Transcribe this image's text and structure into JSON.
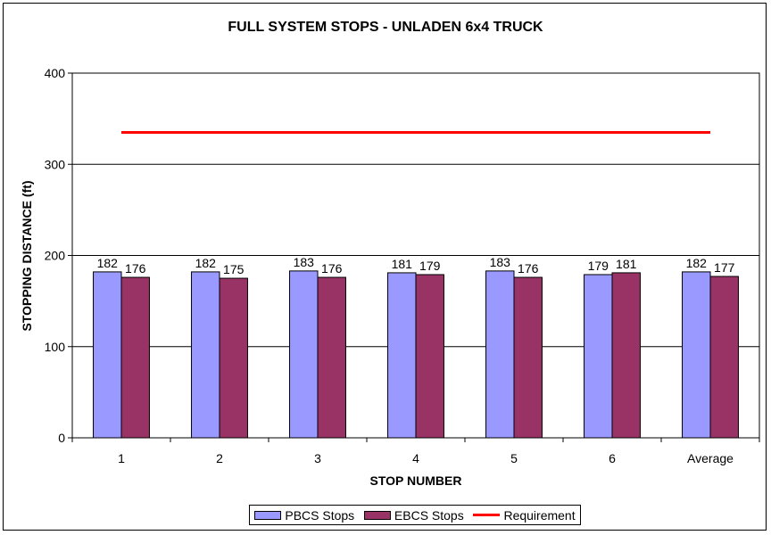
{
  "chart_data": {
    "type": "bar",
    "title": "FULL SYSTEM STOPS - UNLADEN 6x4 TRUCK",
    "xlabel": "STOP NUMBER",
    "ylabel": "STOPPING DISTANCE (ft)",
    "categories": [
      "1",
      "2",
      "3",
      "4",
      "5",
      "6",
      "Average"
    ],
    "ylim": [
      0,
      400
    ],
    "yticks": [
      0,
      100,
      200,
      300,
      400
    ],
    "grid": true,
    "legend_position": "bottom",
    "series": [
      {
        "name": "PBCS Stops",
        "values": [
          182,
          182,
          183,
          181,
          183,
          179,
          182
        ],
        "color": "#9999ff"
      },
      {
        "name": "EBCS Stops",
        "values": [
          176,
          175,
          176,
          179,
          176,
          181,
          177
        ],
        "color": "#993366"
      }
    ],
    "line": {
      "name": "Requirement",
      "value": 335,
      "color": "#ff0000"
    }
  }
}
